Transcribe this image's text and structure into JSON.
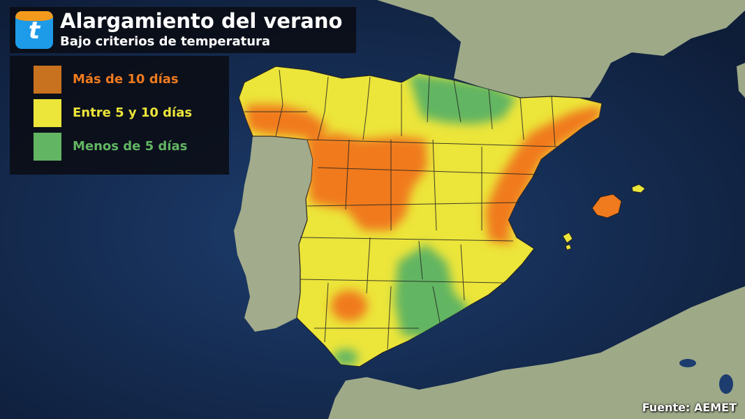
{
  "header": {
    "logo_letter": "t",
    "title": "Alargamiento del verano",
    "subtitle": "Bajo criterios de temperatura"
  },
  "legend": {
    "items": [
      {
        "label": "Más de 10 días",
        "color": "#f07a1e",
        "text_color": "#f07a1e"
      },
      {
        "label": "Entre 5 y 10 días",
        "color": "#ece53a",
        "text_color": "#ece53a"
      },
      {
        "label": "Menos de 5 días",
        "color": "#62b562",
        "text_color": "#62b562"
      }
    ]
  },
  "source": "Fuente: AEMET",
  "colors": {
    "sea": "#14284a",
    "land": "#9aa586",
    "brand_orange": "#f39a1c",
    "brand_blue": "#1d9be8"
  }
}
